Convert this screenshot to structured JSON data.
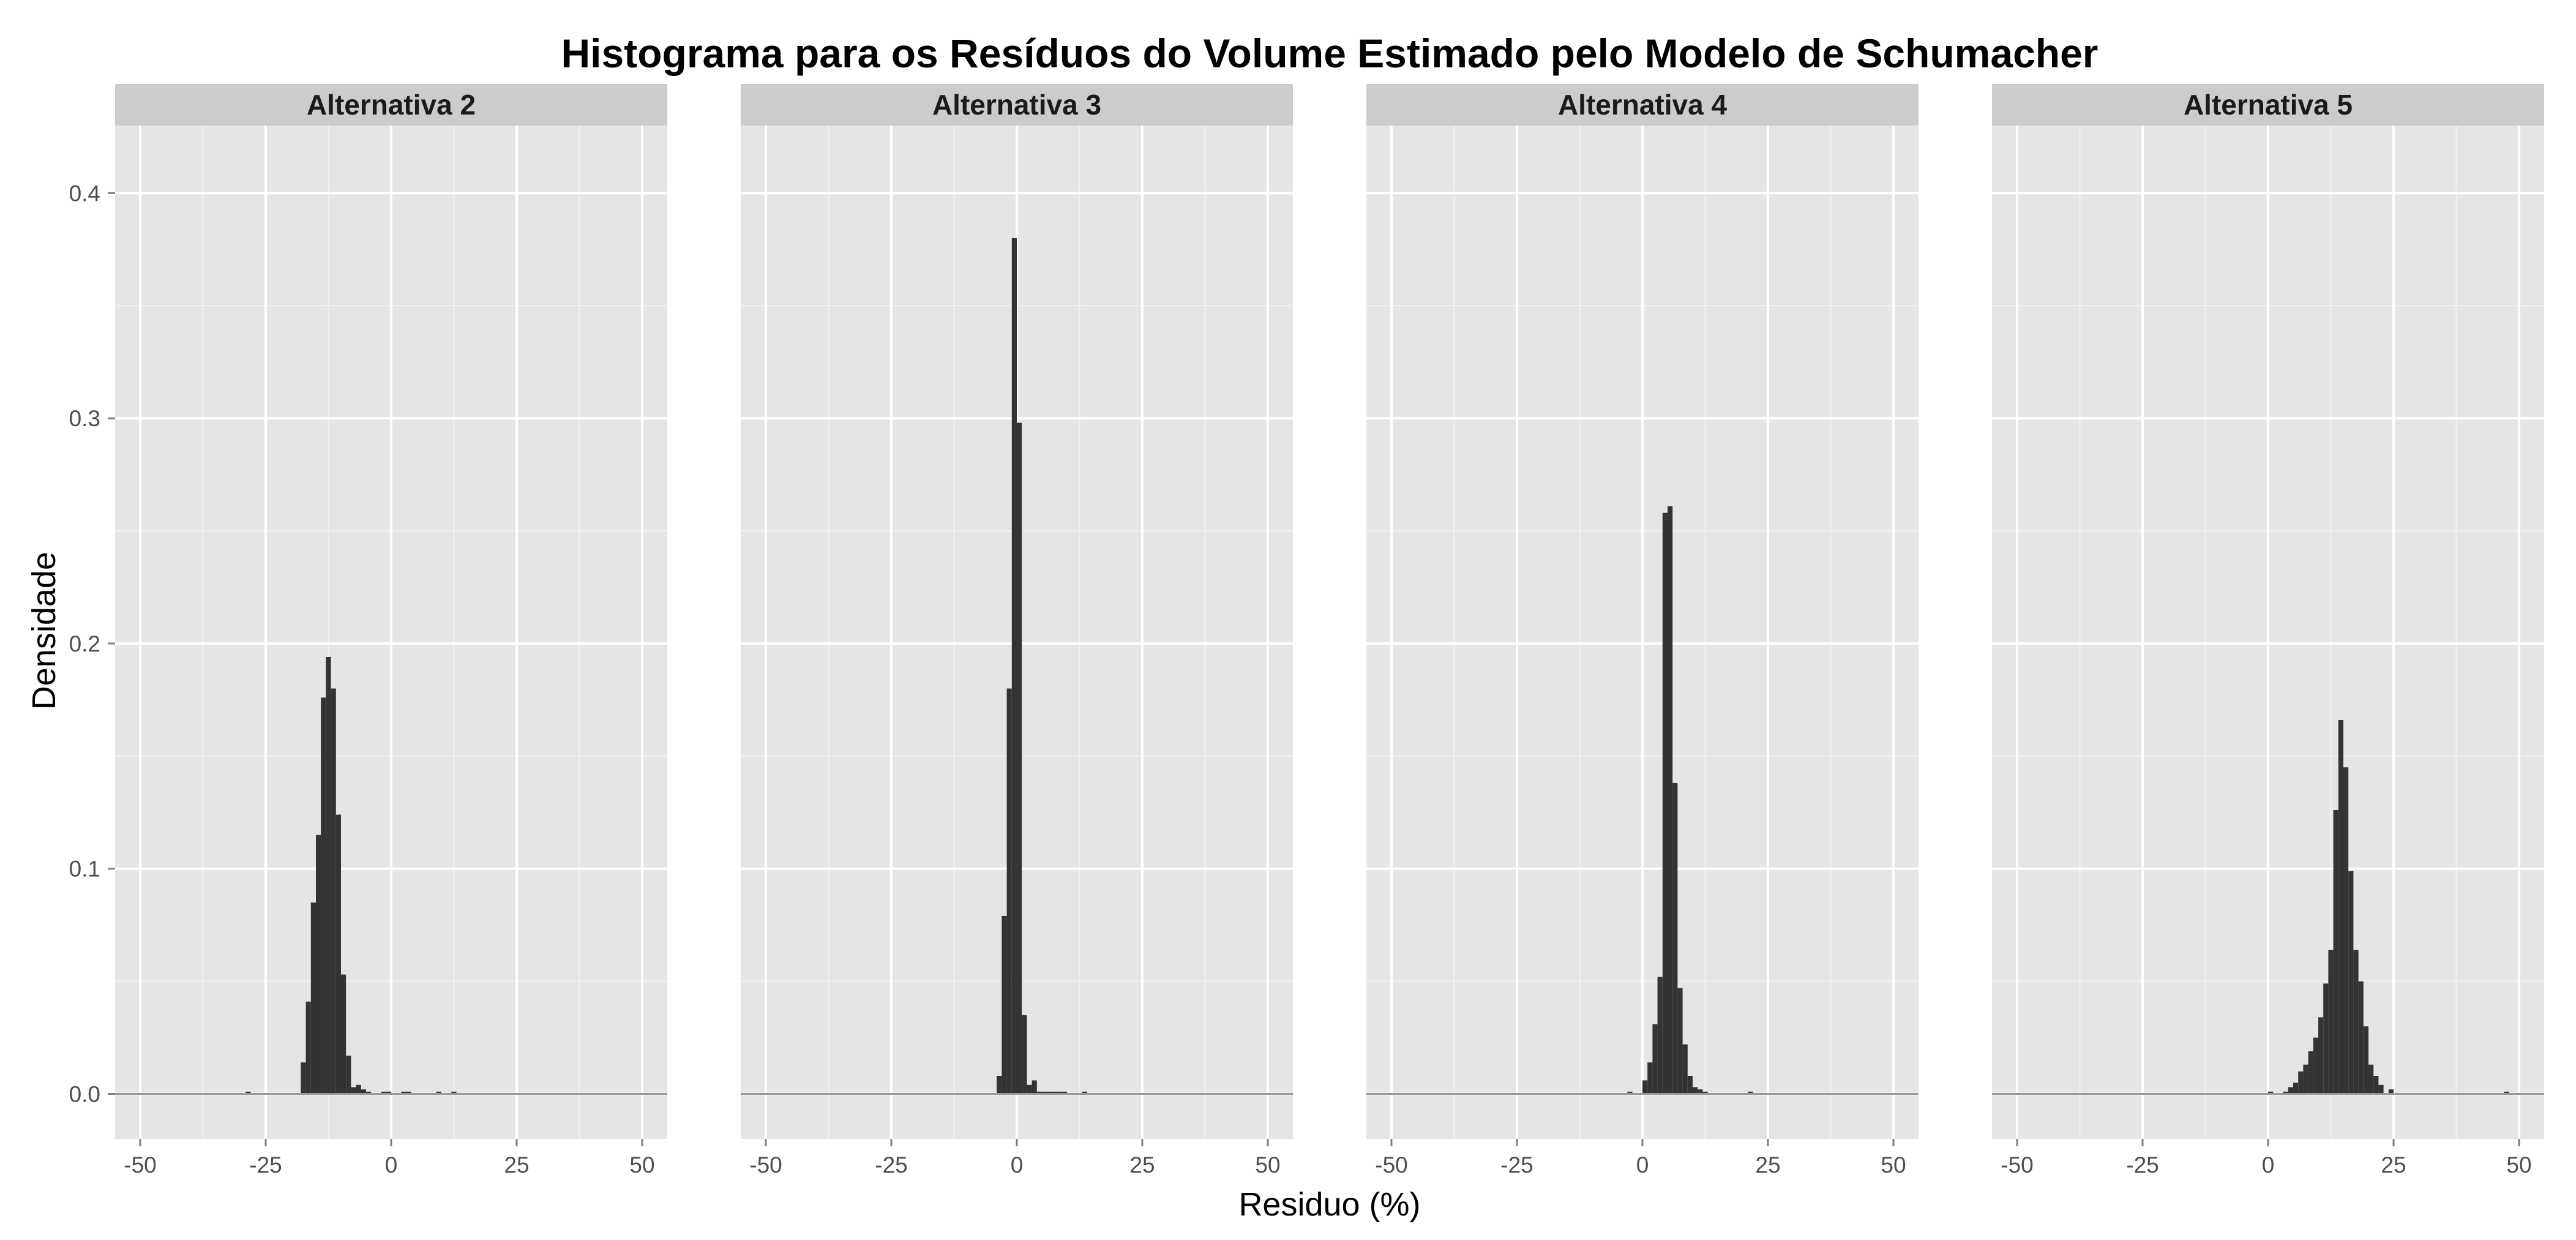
{
  "chart_data": {
    "type": "bar",
    "title": "Histograma para os Resíduos do Volume Estimado pelo Modelo de Schumacher",
    "xlabel": "Residuo (%)",
    "ylabel": "Densidade",
    "xlim": [
      -55,
      55
    ],
    "ylim": [
      -0.02,
      0.43
    ],
    "x_ticks": [
      "-50",
      "-25",
      "0",
      "25",
      "50"
    ],
    "x_tick_values": [
      -50,
      -25,
      0,
      25,
      50
    ],
    "y_ticks": [
      "0.0",
      "0.1",
      "0.2",
      "0.3",
      "0.4"
    ],
    "y_tick_values": [
      0,
      0.1,
      0.2,
      0.3,
      0.4
    ],
    "bin_width": 1,
    "grid": true,
    "colors": {
      "panel_background": "#e5e5e5",
      "grid_major": "#ffffff",
      "grid_minor": "#f2f2f2",
      "strip_background": "#cccccc",
      "bar_fill": "#333333",
      "baseline": "#999999"
    },
    "facets": [
      {
        "label": "Alternativa 2",
        "bins": [
          {
            "x0": -29,
            "density": 0.001
          },
          {
            "x0": -18,
            "density": 0.014
          },
          {
            "x0": -17,
            "density": 0.041
          },
          {
            "x0": -16,
            "density": 0.085
          },
          {
            "x0": -15,
            "density": 0.115
          },
          {
            "x0": -14,
            "density": 0.176
          },
          {
            "x0": -13,
            "density": 0.194
          },
          {
            "x0": -12,
            "density": 0.18
          },
          {
            "x0": -11,
            "density": 0.124
          },
          {
            "x0": -10,
            "density": 0.053
          },
          {
            "x0": -9,
            "density": 0.017
          },
          {
            "x0": -8,
            "density": 0.003
          },
          {
            "x0": -7,
            "density": 0.004
          },
          {
            "x0": -6,
            "density": 0.002
          },
          {
            "x0": -5,
            "density": 0.001
          },
          {
            "x0": -2,
            "density": 0.001
          },
          {
            "x0": -1,
            "density": 0.001
          },
          {
            "x0": 2,
            "density": 0.001
          },
          {
            "x0": 3,
            "density": 0.001
          },
          {
            "x0": 9,
            "density": 0.001
          },
          {
            "x0": 12,
            "density": 0.001
          }
        ]
      },
      {
        "label": "Alternativa 3",
        "bins": [
          {
            "x0": -4,
            "density": 0.008
          },
          {
            "x0": -3,
            "density": 0.079
          },
          {
            "x0": -2,
            "density": 0.18
          },
          {
            "x0": -1,
            "density": 0.38
          },
          {
            "x0": 0,
            "density": 0.298
          },
          {
            "x0": 1,
            "density": 0.035
          },
          {
            "x0": 2,
            "density": 0.004
          },
          {
            "x0": 3,
            "density": 0.006
          },
          {
            "x0": 4,
            "density": 0.001
          },
          {
            "x0": 5,
            "density": 0.001
          },
          {
            "x0": 6,
            "density": 0.001
          },
          {
            "x0": 7,
            "density": 0.001
          },
          {
            "x0": 8,
            "density": 0.001
          },
          {
            "x0": 9,
            "density": 0.001
          },
          {
            "x0": 13,
            "density": 0.001
          }
        ]
      },
      {
        "label": "Alternativa 4",
        "bins": [
          {
            "x0": -3,
            "density": 0.001
          },
          {
            "x0": 0,
            "density": 0.006
          },
          {
            "x0": 1,
            "density": 0.014
          },
          {
            "x0": 2,
            "density": 0.031
          },
          {
            "x0": 3,
            "density": 0.052
          },
          {
            "x0": 4,
            "density": 0.258
          },
          {
            "x0": 5,
            "density": 0.261
          },
          {
            "x0": 6,
            "density": 0.138
          },
          {
            "x0": 7,
            "density": 0.047
          },
          {
            "x0": 8,
            "density": 0.022
          },
          {
            "x0": 9,
            "density": 0.008
          },
          {
            "x0": 10,
            "density": 0.003
          },
          {
            "x0": 11,
            "density": 0.002
          },
          {
            "x0": 12,
            "density": 0.001
          },
          {
            "x0": 21,
            "density": 0.001
          }
        ]
      },
      {
        "label": "Alternativa 5",
        "bins": [
          {
            "x0": 0,
            "density": 0.001
          },
          {
            "x0": 3,
            "density": 0.001
          },
          {
            "x0": 4,
            "density": 0.003
          },
          {
            "x0": 5,
            "density": 0.005
          },
          {
            "x0": 6,
            "density": 0.01
          },
          {
            "x0": 7,
            "density": 0.013
          },
          {
            "x0": 8,
            "density": 0.019
          },
          {
            "x0": 9,
            "density": 0.025
          },
          {
            "x0": 10,
            "density": 0.034
          },
          {
            "x0": 11,
            "density": 0.049
          },
          {
            "x0": 12,
            "density": 0.064
          },
          {
            "x0": 13,
            "density": 0.126
          },
          {
            "x0": 14,
            "density": 0.166
          },
          {
            "x0": 15,
            "density": 0.145
          },
          {
            "x0": 16,
            "density": 0.099
          },
          {
            "x0": 17,
            "density": 0.064
          },
          {
            "x0": 18,
            "density": 0.05
          },
          {
            "x0": 19,
            "density": 0.03
          },
          {
            "x0": 20,
            "density": 0.013
          },
          {
            "x0": 21,
            "density": 0.008
          },
          {
            "x0": 22,
            "density": 0.004
          },
          {
            "x0": 24,
            "density": 0.002
          },
          {
            "x0": 47,
            "density": 0.001
          }
        ]
      }
    ]
  }
}
